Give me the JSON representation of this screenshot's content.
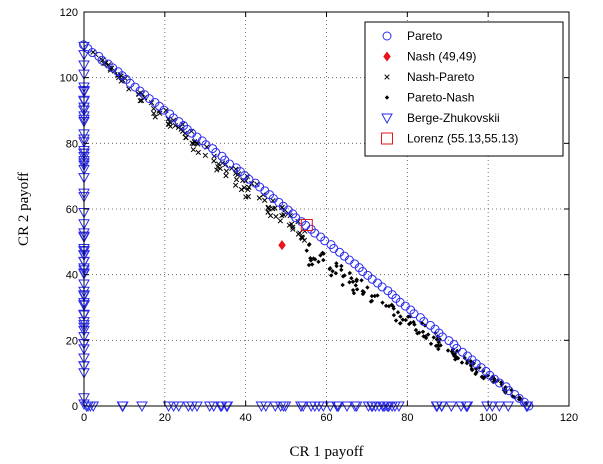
{
  "chart_data": {
    "type": "scatter",
    "xlabel": "CR 1 payoff",
    "ylabel": "CR 2 payoff",
    "xlim": [
      0,
      120
    ],
    "ylim": [
      0,
      120
    ],
    "x_ticks": [
      "0",
      "20",
      "40",
      "60",
      "80",
      "100",
      "120"
    ],
    "y_ticks": [
      "0",
      "20",
      "40",
      "60",
      "80",
      "100",
      "120"
    ],
    "grid": true,
    "legend_position": "top-right",
    "colors": {
      "blue": "#2a2af0",
      "red": "#e8141a",
      "black": "#000000"
    },
    "series": [
      {
        "name": "Pareto",
        "marker": "circle",
        "color": "#2a2af0",
        "x_range": [
          0,
          110
        ],
        "y_range": [
          110,
          0
        ],
        "approx_count": 95
      },
      {
        "name": "Nash (49,49)",
        "marker": "diamond",
        "color": "#e8141a",
        "points": [
          [
            49,
            49
          ]
        ]
      },
      {
        "name": "Nash-Pareto",
        "marker": "x",
        "color": "#000000",
        "x_range": [
          2,
          55
        ],
        "y_range": [
          108,
          56
        ],
        "approx_count": 120
      },
      {
        "name": "Pareto-Nash",
        "marker": "dot",
        "color": "#000000",
        "x_range": [
          55,
          110
        ],
        "y_range": [
          50,
          0
        ],
        "approx_count": 140
      },
      {
        "name": "Berge-Zhukovskii",
        "marker": "triangle-down",
        "color": "#2a2af0",
        "vertical_segment": {
          "x": 0,
          "y_range": [
            0,
            110
          ]
        },
        "horizontal_segment": {
          "y": 0,
          "x_range": [
            0,
            110
          ]
        },
        "approx_count": 140
      },
      {
        "name": "Lorenz (55.13,55.13)",
        "marker": "square",
        "color": "#e8141a",
        "points": [
          [
            55.13,
            55.13
          ]
        ]
      }
    ]
  }
}
